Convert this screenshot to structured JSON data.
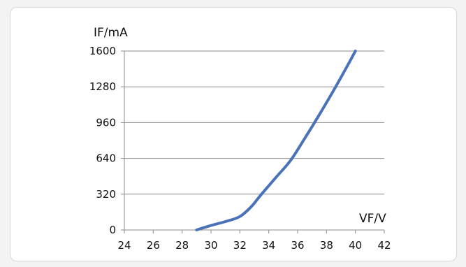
{
  "chart_data": {
    "type": "line",
    "xlabel": "VF/V",
    "ylabel": "IF/mA",
    "xlim": [
      24,
      42
    ],
    "ylim": [
      0,
      1600
    ],
    "x_ticks": [
      24,
      26,
      28,
      30,
      32,
      34,
      36,
      38,
      40,
      42
    ],
    "y_ticks": [
      0,
      320,
      640,
      960,
      1280,
      1600
    ],
    "grid": "horizontal",
    "legend": "none",
    "line_color": "#4a72b8",
    "series": [
      {
        "x": [
          29.0,
          30.0,
          31.0,
          32.0,
          32.8,
          33.5,
          34.5,
          35.5,
          36.5,
          37.5,
          38.5,
          39.5,
          40.0
        ],
        "y": [
          0,
          40,
          75,
          120,
          210,
          320,
          470,
          620,
          820,
          1030,
          1250,
          1480,
          1600
        ]
      }
    ]
  }
}
